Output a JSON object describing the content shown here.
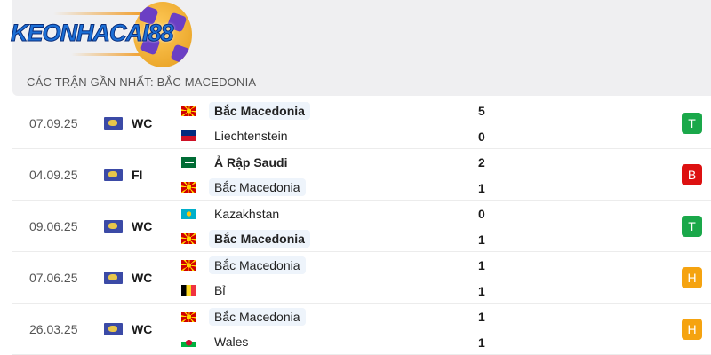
{
  "logo": {
    "text": "KEONHACAI88"
  },
  "title": "CÁC TRẬN GẦN NHẤT: BẮC MACEDONIA",
  "colors": {
    "win": "#1aa84a",
    "loss": "#dd1111",
    "draw": "#f5a310",
    "highlight": "#eef4fb"
  },
  "matches": [
    {
      "date": "07.09.25",
      "competition": "WC",
      "home": {
        "name": "Bắc Macedonia",
        "flag": "north-macedonia",
        "bold": true,
        "hl": true
      },
      "away": {
        "name": "Liechtenstein",
        "flag": "liechtenstein",
        "bold": false,
        "hl": false
      },
      "home_score": "5",
      "away_score": "0",
      "result": "T",
      "result_type": "win"
    },
    {
      "date": "04.09.25",
      "competition": "FI",
      "home": {
        "name": "Ả Rập Saudi",
        "flag": "saudi-arabia",
        "bold": true,
        "hl": false
      },
      "away": {
        "name": "Bắc Macedonia",
        "flag": "north-macedonia",
        "bold": false,
        "hl": true
      },
      "home_score": "2",
      "away_score": "1",
      "result": "B",
      "result_type": "loss"
    },
    {
      "date": "09.06.25",
      "competition": "WC",
      "home": {
        "name": "Kazakhstan",
        "flag": "kazakhstan",
        "bold": false,
        "hl": false
      },
      "away": {
        "name": "Bắc Macedonia",
        "flag": "north-macedonia",
        "bold": true,
        "hl": true
      },
      "home_score": "0",
      "away_score": "1",
      "result": "T",
      "result_type": "win"
    },
    {
      "date": "07.06.25",
      "competition": "WC",
      "home": {
        "name": "Bắc Macedonia",
        "flag": "north-macedonia",
        "bold": false,
        "hl": true
      },
      "away": {
        "name": "Bỉ",
        "flag": "belgium",
        "bold": false,
        "hl": false
      },
      "home_score": "1",
      "away_score": "1",
      "result": "H",
      "result_type": "draw"
    },
    {
      "date": "26.03.25",
      "competition": "WC",
      "home": {
        "name": "Bắc Macedonia",
        "flag": "north-macedonia",
        "bold": false,
        "hl": true
      },
      "away": {
        "name": "Wales",
        "flag": "wales",
        "bold": false,
        "hl": false
      },
      "home_score": "1",
      "away_score": "1",
      "result": "H",
      "result_type": "draw"
    }
  ]
}
